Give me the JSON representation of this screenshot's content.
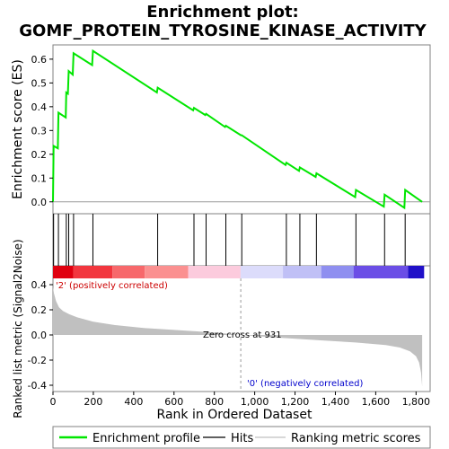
{
  "chart_data": {
    "type": "line",
    "title": "Enrichment plot:",
    "subtitle": "GOMF_PROTEIN_TYROSINE_KINASE_ACTIVITY",
    "top_panel": {
      "ylabel": "Enrichment score (ES)",
      "ylim": [
        -0.05,
        0.66
      ],
      "yticks": [
        "0.0",
        "0.1",
        "0.2",
        "0.3",
        "0.4",
        "0.5",
        "0.6"
      ],
      "ytick_values": [
        0,
        0.1,
        0.2,
        0.3,
        0.4,
        0.5,
        0.6
      ],
      "es_curve": {
        "x": [
          0,
          3,
          24,
          27,
          63,
          66,
          74,
          78,
          98,
          102,
          194,
          198,
          515,
          519,
          695,
          699,
          755,
          759,
          853,
          857,
          932,
          936,
          1153,
          1157,
          1220,
          1224,
          1302,
          1306,
          1498,
          1502,
          1640,
          1644,
          1742,
          1746,
          1830
        ],
        "y": [
          0.0,
          0.235,
          0.225,
          0.375,
          0.355,
          0.46,
          0.455,
          0.55,
          0.535,
          0.625,
          0.575,
          0.635,
          0.46,
          0.48,
          0.385,
          0.395,
          0.365,
          0.37,
          0.315,
          0.32,
          0.28,
          0.28,
          0.155,
          0.165,
          0.13,
          0.145,
          0.105,
          0.12,
          0.02,
          0.05,
          -0.02,
          0.03,
          -0.025,
          0.05,
          0.0
        ]
      }
    },
    "hits": [
      3,
      27,
      66,
      78,
      102,
      198,
      519,
      699,
      759,
      857,
      936,
      1157,
      1224,
      1306,
      1502,
      1644,
      1746
    ],
    "bottom_panel": {
      "ylabel": "Ranked list metric (Signal2Noise)",
      "ylim": [
        -0.45,
        0.45
      ],
      "yticks": [
        "-0.4",
        "-0.2",
        "0.0",
        "0.2",
        "0.4"
      ],
      "ytick_values": [
        -0.4,
        -0.2,
        0,
        0.2,
        0.4
      ],
      "metric_profile": {
        "x": [
          0,
          5,
          15,
          30,
          50,
          80,
          120,
          200,
          300,
          450,
          600,
          800,
          931,
          1100,
          1300,
          1500,
          1650,
          1720,
          1770,
          1800,
          1815,
          1825,
          1830
        ],
        "y": [
          0.38,
          0.33,
          0.27,
          0.22,
          0.19,
          0.165,
          0.14,
          0.105,
          0.08,
          0.055,
          0.04,
          0.02,
          0.0,
          -0.02,
          -0.04,
          -0.06,
          -0.08,
          -0.1,
          -0.13,
          -0.17,
          -0.22,
          -0.3,
          -0.41
        ]
      },
      "zero_cross_label": "Zero cross at 931",
      "zero_cross": 931,
      "pos_label": "'2' (positively correlated)",
      "neg_label": "'0' (negatively correlated)"
    },
    "xlabel": "Rank in Ordered Dataset",
    "xlim": [
      0,
      1840
    ],
    "xticks": [
      "0",
      "200",
      "400",
      "600",
      "800",
      "1,000",
      "1,200",
      "1,400",
      "1,600",
      "1,800"
    ],
    "xtick_values": [
      0,
      200,
      400,
      600,
      800,
      1000,
      1200,
      1400,
      1600,
      1800
    ],
    "colorbar_segments": [
      {
        "from": 0,
        "to": 100,
        "color": "#e0000f"
      },
      {
        "from": 100,
        "to": 295,
        "color": "#f2363e"
      },
      {
        "from": 295,
        "to": 455,
        "color": "#f7686b"
      },
      {
        "from": 455,
        "to": 670,
        "color": "#fb9090"
      },
      {
        "from": 670,
        "to": 930,
        "color": "#fccbdd"
      },
      {
        "from": 930,
        "to": 1140,
        "color": "#dcdcfb"
      },
      {
        "from": 1140,
        "to": 1330,
        "color": "#c0c0f6"
      },
      {
        "from": 1330,
        "to": 1490,
        "color": "#8f8ff0"
      },
      {
        "from": 1490,
        "to": 1760,
        "color": "#6b4ee6"
      },
      {
        "from": 1760,
        "to": 1840,
        "color": "#2010c8"
      }
    ],
    "legend": [
      {
        "label": "Enrichment profile",
        "color": "#00e600"
      },
      {
        "label": "Hits",
        "color": "#000000"
      },
      {
        "label": "Ranking metric scores",
        "color": "#c0c0c0"
      }
    ],
    "colors": {
      "es_line": "#00e600",
      "metric_fill": "#c0c0c0",
      "pos_text": "#cc0000",
      "neg_text": "#0000cc"
    }
  }
}
